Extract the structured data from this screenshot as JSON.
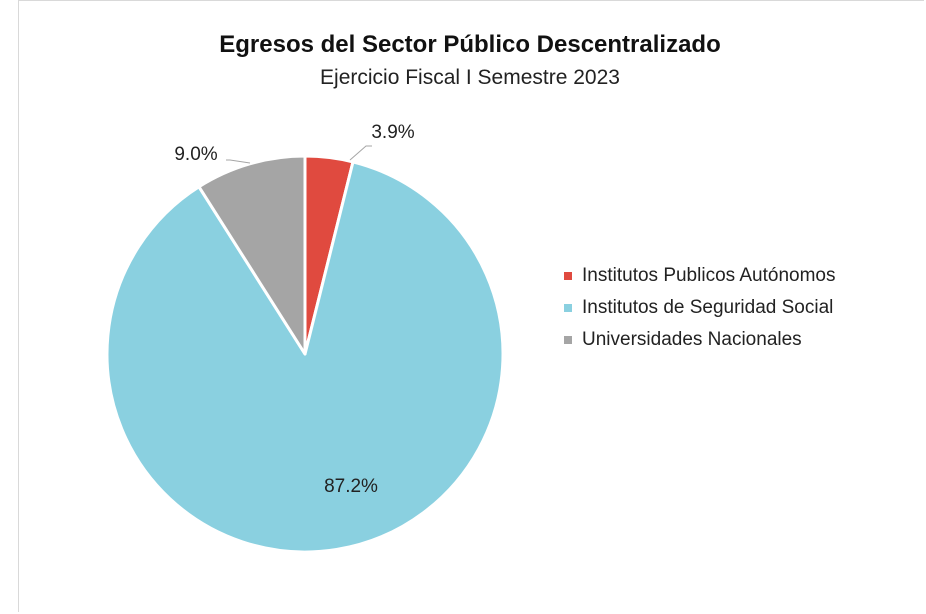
{
  "chart_data": {
    "type": "pie",
    "title": "Egresos del Sector Público Descentralizado",
    "subtitle": "Ejercicio Fiscal I Semestre 2023",
    "categories": [
      "Institutos Publicos Autónomos",
      "Institutos de Seguridad Social",
      "Universidades Nacionales"
    ],
    "values": [
      3.9,
      87.2,
      9.0
    ],
    "value_labels": [
      "3.9%",
      "87.2%",
      "9.0%"
    ],
    "colors": [
      "#e04a3f",
      "#8ad0e0",
      "#a5a5a5"
    ],
    "legend": "right"
  }
}
